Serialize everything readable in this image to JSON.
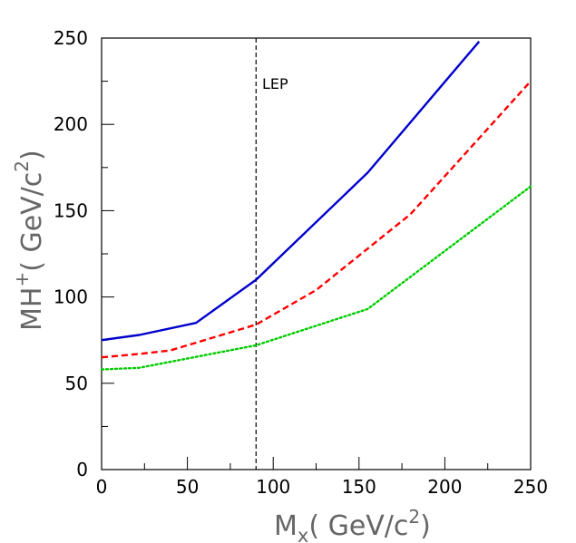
{
  "chart_data": {
    "type": "line",
    "title": "",
    "xlabel": {
      "base": "M",
      "sub": "x",
      "rest": "( GeV/c",
      "sup": "2",
      "close": ")"
    },
    "ylabel": {
      "base": "MH",
      "sup": "+",
      "rest": "( GeV/c",
      "sup2": "2",
      "close": ")"
    },
    "xlim": [
      0,
      250
    ],
    "ylim": [
      0,
      250
    ],
    "x_ticks": [
      0,
      50,
      100,
      150,
      200,
      250
    ],
    "y_ticks": [
      0,
      50,
      100,
      150,
      200,
      250
    ],
    "x_tick_labels": [
      "0",
      "50",
      "100",
      "150",
      "200",
      "250"
    ],
    "y_tick_labels": [
      "0",
      "50",
      "100",
      "150",
      "200",
      "250"
    ],
    "grid": false,
    "legend": "none",
    "series": [
      {
        "style": "solid",
        "color": "#0000cc",
        "points": [
          [
            0,
            75
          ],
          [
            22,
            78
          ],
          [
            55,
            85
          ],
          [
            90,
            110
          ],
          [
            155,
            172
          ],
          [
            220,
            248
          ]
        ]
      },
      {
        "style": "dashed",
        "color": "#ff0000",
        "points": [
          [
            0,
            65
          ],
          [
            22,
            67
          ],
          [
            40,
            69
          ],
          [
            90,
            84
          ],
          [
            125,
            104
          ],
          [
            180,
            148
          ],
          [
            250,
            225
          ]
        ]
      },
      {
        "style": "dotted",
        "color": "#00cc00",
        "points": [
          [
            0,
            58
          ],
          [
            22,
            59
          ],
          [
            90,
            72
          ],
          [
            155,
            93
          ],
          [
            250,
            164
          ]
        ]
      }
    ],
    "annotations": [
      {
        "type": "vline",
        "x": 90,
        "style": "dashed",
        "color": "#000000",
        "label": "LEP"
      }
    ]
  }
}
